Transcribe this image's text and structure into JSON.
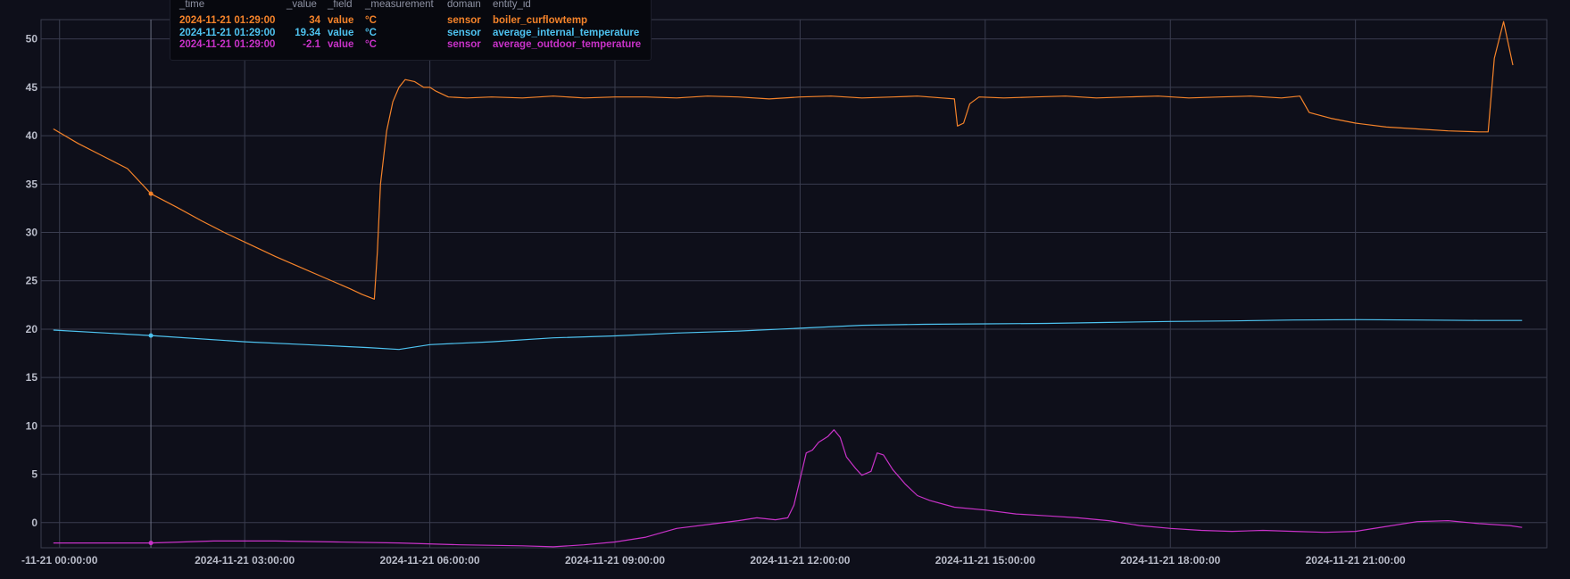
{
  "colors": {
    "background": "#0e0f1a",
    "grid": "#3a3d4f",
    "tick_text": "#b9bcc9",
    "tooltip_bg": "#07080e",
    "tooltip_header": "#8e92a3"
  },
  "tooltip": {
    "headers": [
      "_time",
      "_value",
      "_field",
      "_measurement",
      "domain",
      "entity_id"
    ],
    "rows": [
      {
        "time": "2024-11-21 01:29:00",
        "value": "34",
        "field": "value",
        "measurement": "°C",
        "domain": "sensor",
        "entity_id": "boiler_curflowtemp",
        "color": "#f5832a"
      },
      {
        "time": "2024-11-21 01:29:00",
        "value": "19.34",
        "field": "value",
        "measurement": "°C",
        "domain": "sensor",
        "entity_id": "average_internal_temperature",
        "color": "#4ec3f0"
      },
      {
        "time": "2024-11-21 01:29:00",
        "value": "-2.1",
        "field": "value",
        "measurement": "°C",
        "domain": "sensor",
        "entity_id": "average_outdoor_temperature",
        "color": "#c832c8"
      }
    ]
  },
  "chart_data": {
    "type": "line",
    "x_unit": "hours since 2024-11-21 00:00:00",
    "xlim": [
      -0.3,
      24.1
    ],
    "ylim": [
      -2.6,
      52
    ],
    "y_ticks": [
      0,
      5,
      10,
      15,
      20,
      25,
      30,
      35,
      40,
      45,
      50
    ],
    "x_ticks": [
      {
        "x": 0,
        "label": "-11-21 00:00:00"
      },
      {
        "x": 3,
        "label": "2024-11-21 03:00:00"
      },
      {
        "x": 6,
        "label": "2024-11-21 06:00:00"
      },
      {
        "x": 9,
        "label": "2024-11-21 09:00:00"
      },
      {
        "x": 12,
        "label": "2024-11-21 12:00:00"
      },
      {
        "x": 15,
        "label": "2024-11-21 15:00:00"
      },
      {
        "x": 18,
        "label": "2024-11-21 18:00:00"
      },
      {
        "x": 21,
        "label": "2024-11-21 21:00:00"
      }
    ],
    "hover_x": 1.48,
    "grid": true,
    "legend": "tooltip at top-left",
    "series": [
      {
        "name": "boiler_curflowtemp",
        "color": "#f5832a",
        "points": [
          [
            -0.1,
            40.7
          ],
          [
            0.3,
            39.2
          ],
          [
            0.7,
            37.9
          ],
          [
            1.1,
            36.6
          ],
          [
            1.48,
            34
          ],
          [
            1.9,
            32.6
          ],
          [
            2.3,
            31.2
          ],
          [
            2.7,
            29.9
          ],
          [
            3.1,
            28.7
          ],
          [
            3.5,
            27.5
          ],
          [
            3.9,
            26.4
          ],
          [
            4.3,
            25.3
          ],
          [
            4.7,
            24.2
          ],
          [
            4.9,
            23.6
          ],
          [
            5.1,
            23.1
          ],
          [
            5.15,
            28
          ],
          [
            5.2,
            35
          ],
          [
            5.3,
            40.5
          ],
          [
            5.4,
            43.5
          ],
          [
            5.5,
            45
          ],
          [
            5.6,
            45.8
          ],
          [
            5.75,
            45.6
          ],
          [
            5.9,
            45
          ],
          [
            6.0,
            45
          ],
          [
            6.1,
            44.6
          ],
          [
            6.3,
            44
          ],
          [
            6.6,
            43.9
          ],
          [
            7.0,
            44
          ],
          [
            7.5,
            43.9
          ],
          [
            8.0,
            44.1
          ],
          [
            8.5,
            43.9
          ],
          [
            9.0,
            44
          ],
          [
            9.5,
            44
          ],
          [
            10,
            43.9
          ],
          [
            10.5,
            44.1
          ],
          [
            11,
            44
          ],
          [
            11.5,
            43.8
          ],
          [
            12,
            44
          ],
          [
            12.5,
            44.1
          ],
          [
            13,
            43.9
          ],
          [
            13.5,
            44
          ],
          [
            13.9,
            44.1
          ],
          [
            14.3,
            43.9
          ],
          [
            14.5,
            43.8
          ],
          [
            14.55,
            41
          ],
          [
            14.65,
            41.3
          ],
          [
            14.75,
            43.3
          ],
          [
            14.9,
            44
          ],
          [
            15.3,
            43.9
          ],
          [
            15.8,
            44
          ],
          [
            16.3,
            44.1
          ],
          [
            16.8,
            43.9
          ],
          [
            17.3,
            44
          ],
          [
            17.8,
            44.1
          ],
          [
            18.3,
            43.9
          ],
          [
            18.8,
            44
          ],
          [
            19.3,
            44.1
          ],
          [
            19.8,
            43.9
          ],
          [
            20.1,
            44.1
          ],
          [
            20.25,
            42.4
          ],
          [
            20.6,
            41.8
          ],
          [
            21.0,
            41.3
          ],
          [
            21.5,
            40.9
          ],
          [
            22.0,
            40.7
          ],
          [
            22.5,
            40.5
          ],
          [
            23.0,
            40.4
          ],
          [
            23.15,
            40.4
          ],
          [
            23.25,
            48
          ],
          [
            23.4,
            51.8
          ],
          [
            23.55,
            47.3
          ]
        ]
      },
      {
        "name": "average_internal_temperature",
        "color": "#4ec3f0",
        "points": [
          [
            -0.1,
            19.9
          ],
          [
            1.48,
            19.34
          ],
          [
            3,
            18.7
          ],
          [
            4,
            18.4
          ],
          [
            5,
            18.1
          ],
          [
            5.5,
            17.9
          ],
          [
            6,
            18.4
          ],
          [
            7,
            18.7
          ],
          [
            8,
            19.1
          ],
          [
            9,
            19.3
          ],
          [
            10,
            19.6
          ],
          [
            11,
            19.8
          ],
          [
            12,
            20.1
          ],
          [
            13,
            20.4
          ],
          [
            14,
            20.5
          ],
          [
            15,
            20.55
          ],
          [
            16,
            20.6
          ],
          [
            17,
            20.7
          ],
          [
            18,
            20.8
          ],
          [
            19,
            20.85
          ],
          [
            20,
            20.95
          ],
          [
            21,
            20.98
          ],
          [
            22,
            20.95
          ],
          [
            23,
            20.9
          ],
          [
            23.7,
            20.9
          ]
        ]
      },
      {
        "name": "average_outdoor_temperature",
        "color": "#c832c8",
        "points": [
          [
            -0.1,
            -2.1
          ],
          [
            1.48,
            -2.1
          ],
          [
            2.5,
            -1.9
          ],
          [
            3.5,
            -1.9
          ],
          [
            4.5,
            -2.0
          ],
          [
            5.5,
            -2.1
          ],
          [
            6.5,
            -2.3
          ],
          [
            7.5,
            -2.4
          ],
          [
            8.0,
            -2.5
          ],
          [
            8.5,
            -2.3
          ],
          [
            9.0,
            -2.0
          ],
          [
            9.5,
            -1.5
          ],
          [
            10.0,
            -0.6
          ],
          [
            10.5,
            -0.2
          ],
          [
            11.0,
            0.2
          ],
          [
            11.3,
            0.5
          ],
          [
            11.6,
            0.3
          ],
          [
            11.8,
            0.5
          ],
          [
            11.9,
            1.8
          ],
          [
            12.0,
            4.5
          ],
          [
            12.1,
            7.2
          ],
          [
            12.2,
            7.5
          ],
          [
            12.3,
            8.3
          ],
          [
            12.45,
            8.9
          ],
          [
            12.55,
            9.6
          ],
          [
            12.65,
            8.8
          ],
          [
            12.75,
            6.8
          ],
          [
            12.9,
            5.6
          ],
          [
            13.0,
            4.9
          ],
          [
            13.15,
            5.3
          ],
          [
            13.25,
            7.2
          ],
          [
            13.35,
            7.0
          ],
          [
            13.5,
            5.5
          ],
          [
            13.7,
            4.0
          ],
          [
            13.9,
            2.8
          ],
          [
            14.1,
            2.3
          ],
          [
            14.5,
            1.6
          ],
          [
            15.0,
            1.3
          ],
          [
            15.5,
            0.9
          ],
          [
            16.0,
            0.7
          ],
          [
            16.5,
            0.5
          ],
          [
            17.0,
            0.2
          ],
          [
            17.5,
            -0.3
          ],
          [
            18.0,
            -0.6
          ],
          [
            18.5,
            -0.8
          ],
          [
            19.0,
            -0.9
          ],
          [
            19.5,
            -0.8
          ],
          [
            20.0,
            -0.9
          ],
          [
            20.5,
            -1.0
          ],
          [
            21.0,
            -0.9
          ],
          [
            21.5,
            -0.4
          ],
          [
            22.0,
            0.1
          ],
          [
            22.5,
            0.2
          ],
          [
            23.0,
            -0.1
          ],
          [
            23.5,
            -0.3
          ],
          [
            23.7,
            -0.5
          ]
        ]
      }
    ]
  }
}
